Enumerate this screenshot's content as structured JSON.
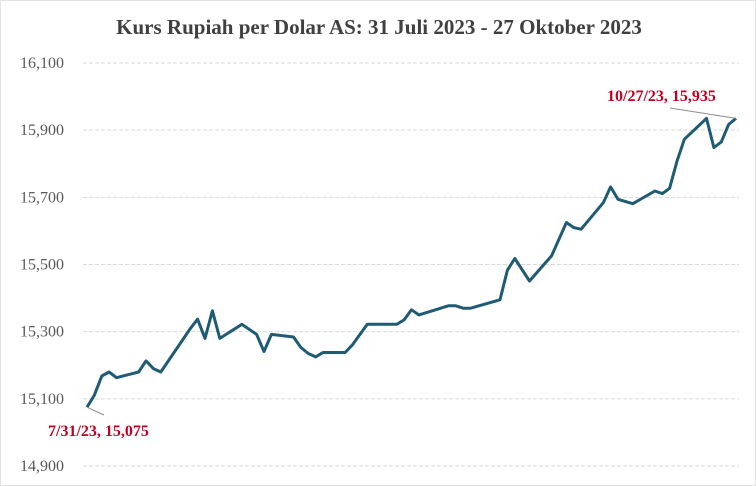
{
  "chart_data": {
    "type": "line",
    "title": "Kurs Rupiah per Dolar AS: 31 Juli 2023 - 27 Oktober 2023",
    "xlabel": "",
    "ylabel": "",
    "ylim": [
      14900,
      16100
    ],
    "yticks": [
      14900,
      15100,
      15300,
      15500,
      15700,
      15900,
      16100
    ],
    "ytick_labels": [
      "14,900",
      "15,100",
      "15,300",
      "15,500",
      "15,700",
      "15,900",
      "16,100"
    ],
    "xlim": [
      "2023-07-31",
      "2023-10-27"
    ],
    "grid": "horizontal dashed",
    "line_color": "#1f5c74",
    "annotation_color": "#c00020",
    "annotations": [
      {
        "text": "7/31/23, 15,075",
        "x": "2023-07-31",
        "y": 15075
      },
      {
        "text": "10/27/23, 15,935",
        "x": "2023-10-27",
        "y": 15935
      }
    ],
    "series": [
      {
        "x": [
          "2023-07-31",
          "2023-08-01",
          "2023-08-02",
          "2023-08-03",
          "2023-08-04",
          "2023-08-07",
          "2023-08-08",
          "2023-08-09",
          "2023-08-10",
          "2023-08-14",
          "2023-08-15",
          "2023-08-16",
          "2023-08-17",
          "2023-08-18",
          "2023-08-21",
          "2023-08-23",
          "2023-08-24",
          "2023-08-25",
          "2023-08-28",
          "2023-08-29",
          "2023-08-30",
          "2023-08-31",
          "2023-09-01",
          "2023-09-04",
          "2023-09-05",
          "2023-09-07",
          "2023-09-11",
          "2023-09-12",
          "2023-09-13",
          "2023-09-14",
          "2023-09-18",
          "2023-09-19",
          "2023-09-20",
          "2023-09-21",
          "2023-09-25",
          "2023-09-26",
          "2023-09-27",
          "2023-09-29",
          "2023-10-02",
          "2023-10-04",
          "2023-10-05",
          "2023-10-06",
          "2023-10-09",
          "2023-10-10",
          "2023-10-11",
          "2023-10-13",
          "2023-10-16",
          "2023-10-17",
          "2023-10-18",
          "2023-10-19",
          "2023-10-20",
          "2023-10-23",
          "2023-10-24",
          "2023-10-25",
          "2023-10-26",
          "2023-10-27"
        ],
        "values": [
          15075,
          15111,
          15168,
          15180,
          15163,
          15180,
          15213,
          15190,
          15180,
          15309,
          15337,
          15280,
          15362,
          15280,
          15322,
          15292,
          15241,
          15292,
          15284,
          15253,
          15235,
          15225,
          15238,
          15238,
          15261,
          15322,
          15322,
          15335,
          15365,
          15350,
          15377,
          15377,
          15370,
          15370,
          15395,
          15483,
          15518,
          15451,
          15526,
          15625,
          15610,
          15605,
          15684,
          15731,
          15694,
          15681,
          15719,
          15711,
          15727,
          15808,
          15873,
          15935,
          15848,
          15865,
          15917,
          15935
        ]
      }
    ]
  }
}
